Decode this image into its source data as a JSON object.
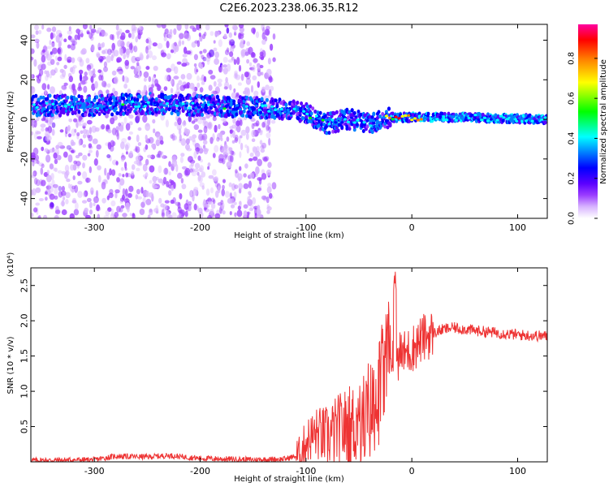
{
  "title": "C2E6.2023.238.06.35.R12",
  "chart_data": [
    {
      "type": "heatmap",
      "xlabel": "Height of straight line (km)",
      "ylabel": "Frequency (Hz)",
      "xlim": [
        -360,
        128
      ],
      "ylim": [
        -50,
        48
      ],
      "x_ticks": [
        -300,
        -200,
        -100,
        0,
        100
      ],
      "y_ticks": [
        -40,
        -20,
        0,
        20,
        40
      ],
      "colorbar": {
        "label": "Normalized spectral amplitude",
        "ticks": [
          0.0,
          0.2,
          0.4,
          0.6,
          0.8
        ],
        "range": [
          0,
          0.97
        ],
        "colors": [
          "#ffffff",
          "#d8b4ff",
          "#9a3cff",
          "#5a00ff",
          "#0000ff",
          "#0080ff",
          "#00ffff",
          "#00ff00",
          "#ffff00",
          "#ff8000",
          "#ff0000",
          "#ff00a0"
        ]
      },
      "features": {
        "central_band_center_hz": [
          [
            -360,
            7
          ],
          [
            -300,
            7
          ],
          [
            -250,
            8
          ],
          [
            -200,
            7
          ],
          [
            -150,
            6
          ],
          [
            -120,
            5
          ],
          [
            -100,
            3
          ],
          [
            -80,
            -2
          ],
          [
            -60,
            0
          ],
          [
            -40,
            -2
          ],
          [
            -20,
            1
          ],
          [
            0,
            1
          ],
          [
            50,
            1
          ],
          [
            128,
            0
          ]
        ],
        "noise_region_km": [
          -360,
          -130
        ]
      }
    },
    {
      "type": "line",
      "xlabel": "Height of straight line (km)",
      "ylabel": "SNR (10 * v/v)",
      "y_multiplier": "(x10⁴)",
      "xlim": [
        -360,
        128
      ],
      "ylim": [
        0,
        2.75
      ],
      "x_ticks": [
        -300,
        -200,
        -100,
        0,
        100
      ],
      "y_ticks": [
        0.5,
        1.0,
        1.5,
        2.0,
        2.5
      ],
      "y_tick_labels": [
        "0.5",
        "1.0",
        "1.5",
        "2.0",
        "2.5"
      ],
      "color": "#ee3333",
      "series": [
        {
          "x": [
            -360,
            -300,
            -280,
            -250,
            -230,
            -200,
            -150,
            -120,
            -105,
            -100,
            -90,
            -80,
            -70,
            -60,
            -50,
            -40,
            -30,
            -25,
            -20,
            -17,
            -15,
            -10,
            -5,
            0,
            10,
            20,
            30,
            40,
            50,
            60,
            80,
            100,
            128
          ],
          "y": [
            0.02,
            0.03,
            0.08,
            0.07,
            0.09,
            0.05,
            0.03,
            0.04,
            0.1,
            0.3,
            0.4,
            0.35,
            0.45,
            0.5,
            0.55,
            0.7,
            1.05,
            1.4,
            1.5,
            1.55,
            1.5,
            1.5,
            1.55,
            1.6,
            1.75,
            1.82,
            1.88,
            1.9,
            1.88,
            1.86,
            1.83,
            1.8,
            1.78
          ]
        }
      ]
    }
  ]
}
